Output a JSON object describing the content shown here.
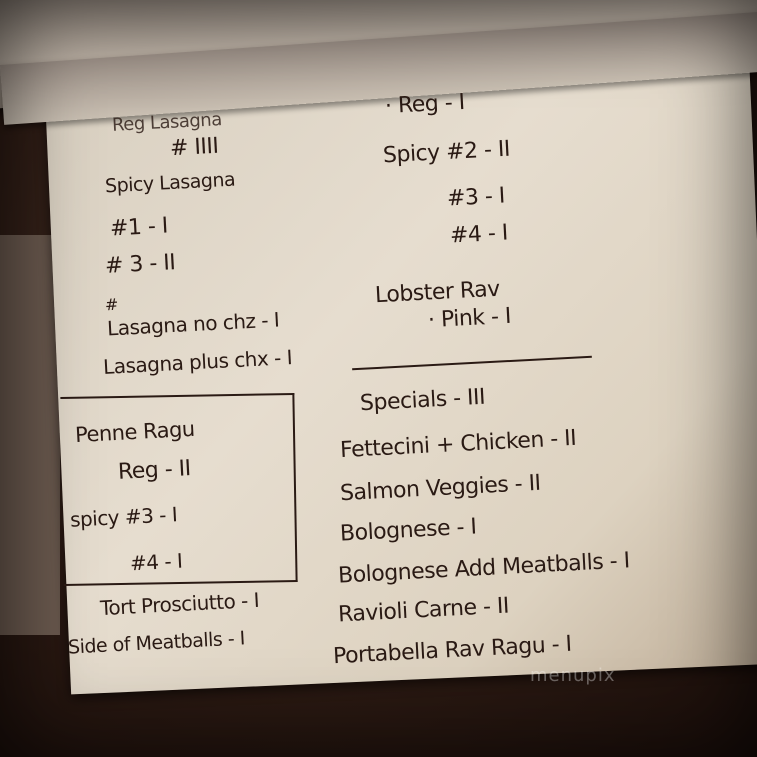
{
  "note": {
    "left_column": {
      "reg_lasagna": "Reg Lasagna",
      "reg_lasagna_count": "# IIII",
      "spicy_lasagna": "Spicy Lasagna",
      "spicy_1": "#1 - I",
      "spicy_3": "# 3 - II",
      "hash": "#",
      "lasagna_no_chz": "Lasagna no chz - I",
      "lasagna_plus_chx": "Lasagna plus chx - I",
      "penne_ragu": "Penne Ragu",
      "penne_reg": "Reg - II",
      "penne_spicy_3": "spicy #3 - I",
      "penne_spicy_4": "#4 - I",
      "tort_prosciutto": "Tort Prosciutto - I",
      "side_meatballs": "Side of Meatballs - I"
    },
    "right_column": {
      "reg": "· Reg - I",
      "spicy_2": "Spicy #2 - II",
      "spicy_3": "#3 - I",
      "spicy_4": "#4 - I",
      "lobster_rav": "Lobster Rav",
      "pink": "· Pink - I",
      "specials": "Specials - III",
      "fettecini": "Fettecini + Chicken - II",
      "salmon": "Salmon Veggies - II",
      "bolognese": "Bolognese - I",
      "bolognese_meatballs": "Bolognese Add Meatballs - I",
      "ravioli_carne": "Ravioli Carne - II",
      "portabella": "Portabella Rav Ragu - I"
    }
  },
  "watermark": "menupix",
  "colors": {
    "ink": "#2a1a14",
    "paper": "#e2d8c9",
    "background": "#24150f"
  }
}
